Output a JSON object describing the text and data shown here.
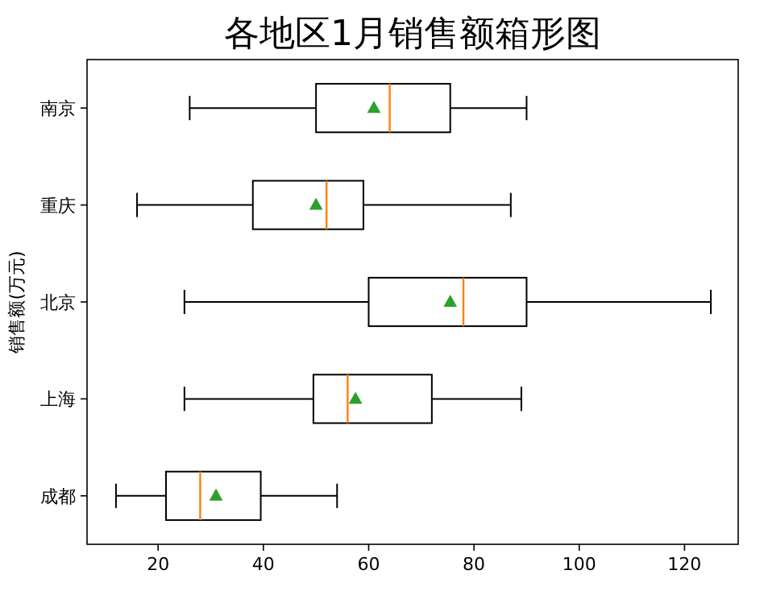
{
  "chart_data": {
    "type": "box",
    "orientation": "horizontal",
    "title": "各地区1月销售额箱形图",
    "ylabel": "销售额(万元)",
    "categories": [
      "南京",
      "重庆",
      "北京",
      "上海",
      "成都"
    ],
    "boxes": [
      {
        "low": 26,
        "q1": 50,
        "median": 64,
        "q3": 75.5,
        "high": 90,
        "mean": 61
      },
      {
        "low": 16,
        "q1": 38,
        "median": 52,
        "q3": 59,
        "high": 87,
        "mean": 50
      },
      {
        "low": 25,
        "q1": 60,
        "median": 78,
        "q3": 90,
        "high": 125,
        "mean": 75.5
      },
      {
        "low": 25,
        "q1": 49.5,
        "median": 56,
        "q3": 72,
        "high": 89,
        "mean": 57.5
      },
      {
        "low": 12,
        "q1": 21.5,
        "median": 28,
        "q3": 39.5,
        "high": 54,
        "mean": 31
      }
    ],
    "xlim": [
      6.5,
      130.2
    ],
    "xticks": [
      20,
      40,
      60,
      80,
      100,
      120
    ],
    "marker": "triangle",
    "grid": false
  }
}
